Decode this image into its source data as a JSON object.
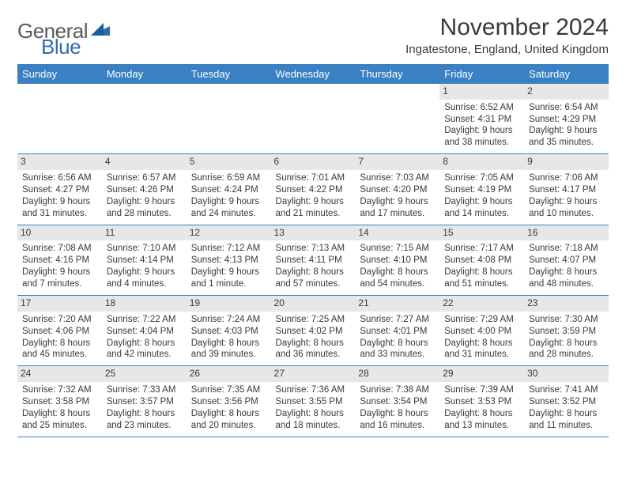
{
  "logo": {
    "word1": "General",
    "word2": "Blue"
  },
  "title": "November 2024",
  "location": "Ingatestone, England, United Kingdom",
  "colors": {
    "header_bg": "#3a80c3",
    "header_text": "#ffffff",
    "daynum_bg": "#e7e7e7",
    "border": "#3a80c3",
    "body_text": "#3a3a3a",
    "logo_gray": "#5a5a5a",
    "logo_blue": "#2f6fa8"
  },
  "weekdays": [
    "Sunday",
    "Monday",
    "Tuesday",
    "Wednesday",
    "Thursday",
    "Friday",
    "Saturday"
  ],
  "weeks": [
    [
      {
        "n": "",
        "sr": "",
        "ss": "",
        "dl": ""
      },
      {
        "n": "",
        "sr": "",
        "ss": "",
        "dl": ""
      },
      {
        "n": "",
        "sr": "",
        "ss": "",
        "dl": ""
      },
      {
        "n": "",
        "sr": "",
        "ss": "",
        "dl": ""
      },
      {
        "n": "",
        "sr": "",
        "ss": "",
        "dl": ""
      },
      {
        "n": "1",
        "sr": "Sunrise: 6:52 AM",
        "ss": "Sunset: 4:31 PM",
        "dl": "Daylight: 9 hours and 38 minutes."
      },
      {
        "n": "2",
        "sr": "Sunrise: 6:54 AM",
        "ss": "Sunset: 4:29 PM",
        "dl": "Daylight: 9 hours and 35 minutes."
      }
    ],
    [
      {
        "n": "3",
        "sr": "Sunrise: 6:56 AM",
        "ss": "Sunset: 4:27 PM",
        "dl": "Daylight: 9 hours and 31 minutes."
      },
      {
        "n": "4",
        "sr": "Sunrise: 6:57 AM",
        "ss": "Sunset: 4:26 PM",
        "dl": "Daylight: 9 hours and 28 minutes."
      },
      {
        "n": "5",
        "sr": "Sunrise: 6:59 AM",
        "ss": "Sunset: 4:24 PM",
        "dl": "Daylight: 9 hours and 24 minutes."
      },
      {
        "n": "6",
        "sr": "Sunrise: 7:01 AM",
        "ss": "Sunset: 4:22 PM",
        "dl": "Daylight: 9 hours and 21 minutes."
      },
      {
        "n": "7",
        "sr": "Sunrise: 7:03 AM",
        "ss": "Sunset: 4:20 PM",
        "dl": "Daylight: 9 hours and 17 minutes."
      },
      {
        "n": "8",
        "sr": "Sunrise: 7:05 AM",
        "ss": "Sunset: 4:19 PM",
        "dl": "Daylight: 9 hours and 14 minutes."
      },
      {
        "n": "9",
        "sr": "Sunrise: 7:06 AM",
        "ss": "Sunset: 4:17 PM",
        "dl": "Daylight: 9 hours and 10 minutes."
      }
    ],
    [
      {
        "n": "10",
        "sr": "Sunrise: 7:08 AM",
        "ss": "Sunset: 4:16 PM",
        "dl": "Daylight: 9 hours and 7 minutes."
      },
      {
        "n": "11",
        "sr": "Sunrise: 7:10 AM",
        "ss": "Sunset: 4:14 PM",
        "dl": "Daylight: 9 hours and 4 minutes."
      },
      {
        "n": "12",
        "sr": "Sunrise: 7:12 AM",
        "ss": "Sunset: 4:13 PM",
        "dl": "Daylight: 9 hours and 1 minute."
      },
      {
        "n": "13",
        "sr": "Sunrise: 7:13 AM",
        "ss": "Sunset: 4:11 PM",
        "dl": "Daylight: 8 hours and 57 minutes."
      },
      {
        "n": "14",
        "sr": "Sunrise: 7:15 AM",
        "ss": "Sunset: 4:10 PM",
        "dl": "Daylight: 8 hours and 54 minutes."
      },
      {
        "n": "15",
        "sr": "Sunrise: 7:17 AM",
        "ss": "Sunset: 4:08 PM",
        "dl": "Daylight: 8 hours and 51 minutes."
      },
      {
        "n": "16",
        "sr": "Sunrise: 7:18 AM",
        "ss": "Sunset: 4:07 PM",
        "dl": "Daylight: 8 hours and 48 minutes."
      }
    ],
    [
      {
        "n": "17",
        "sr": "Sunrise: 7:20 AM",
        "ss": "Sunset: 4:06 PM",
        "dl": "Daylight: 8 hours and 45 minutes."
      },
      {
        "n": "18",
        "sr": "Sunrise: 7:22 AM",
        "ss": "Sunset: 4:04 PM",
        "dl": "Daylight: 8 hours and 42 minutes."
      },
      {
        "n": "19",
        "sr": "Sunrise: 7:24 AM",
        "ss": "Sunset: 4:03 PM",
        "dl": "Daylight: 8 hours and 39 minutes."
      },
      {
        "n": "20",
        "sr": "Sunrise: 7:25 AM",
        "ss": "Sunset: 4:02 PM",
        "dl": "Daylight: 8 hours and 36 minutes."
      },
      {
        "n": "21",
        "sr": "Sunrise: 7:27 AM",
        "ss": "Sunset: 4:01 PM",
        "dl": "Daylight: 8 hours and 33 minutes."
      },
      {
        "n": "22",
        "sr": "Sunrise: 7:29 AM",
        "ss": "Sunset: 4:00 PM",
        "dl": "Daylight: 8 hours and 31 minutes."
      },
      {
        "n": "23",
        "sr": "Sunrise: 7:30 AM",
        "ss": "Sunset: 3:59 PM",
        "dl": "Daylight: 8 hours and 28 minutes."
      }
    ],
    [
      {
        "n": "24",
        "sr": "Sunrise: 7:32 AM",
        "ss": "Sunset: 3:58 PM",
        "dl": "Daylight: 8 hours and 25 minutes."
      },
      {
        "n": "25",
        "sr": "Sunrise: 7:33 AM",
        "ss": "Sunset: 3:57 PM",
        "dl": "Daylight: 8 hours and 23 minutes."
      },
      {
        "n": "26",
        "sr": "Sunrise: 7:35 AM",
        "ss": "Sunset: 3:56 PM",
        "dl": "Daylight: 8 hours and 20 minutes."
      },
      {
        "n": "27",
        "sr": "Sunrise: 7:36 AM",
        "ss": "Sunset: 3:55 PM",
        "dl": "Daylight: 8 hours and 18 minutes."
      },
      {
        "n": "28",
        "sr": "Sunrise: 7:38 AM",
        "ss": "Sunset: 3:54 PM",
        "dl": "Daylight: 8 hours and 16 minutes."
      },
      {
        "n": "29",
        "sr": "Sunrise: 7:39 AM",
        "ss": "Sunset: 3:53 PM",
        "dl": "Daylight: 8 hours and 13 minutes."
      },
      {
        "n": "30",
        "sr": "Sunrise: 7:41 AM",
        "ss": "Sunset: 3:52 PM",
        "dl": "Daylight: 8 hours and 11 minutes."
      }
    ]
  ]
}
